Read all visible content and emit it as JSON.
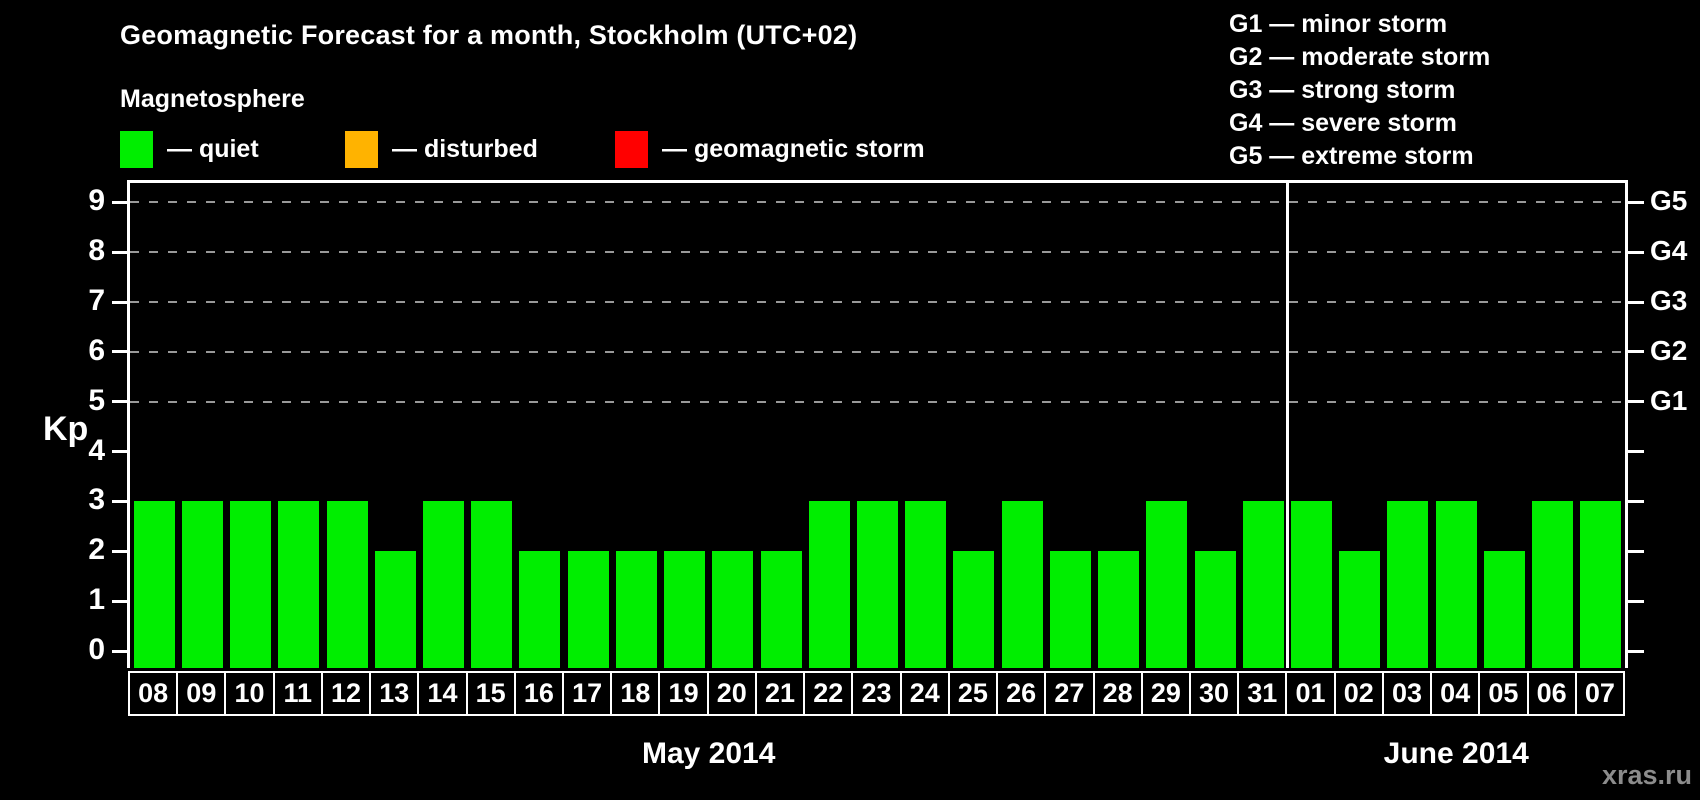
{
  "header": {
    "title": "Geomagnetic Forecast for a month, Stockholm (UTC+02)",
    "magnetosphere_label": "Magnetosphere",
    "legend": [
      {
        "label": "— quiet",
        "color": "#00ee00"
      },
      {
        "label": "— disturbed",
        "color": "#ffb300"
      },
      {
        "label": "— geomagnetic storm",
        "color": "#ff0000"
      }
    ],
    "g_scale_legend": [
      "G1 — minor storm",
      "G2 — moderate storm",
      "G3 — strong storm",
      "G4 — severe storm",
      "G5 — extreme storm"
    ]
  },
  "chart_data": {
    "type": "bar",
    "title": "Geomagnetic Forecast for a month, Stockholm (UTC+02)",
    "ylabel": "Kp",
    "ylim": [
      0,
      9.4
    ],
    "yticks": [
      0,
      1,
      2,
      3,
      4,
      5,
      6,
      7,
      8,
      9
    ],
    "gridlines_at": [
      5,
      6,
      7,
      8,
      9
    ],
    "grid": "dashed-horizontal",
    "right_axis_labels": [
      {
        "label": "G1",
        "kp": 5
      },
      {
        "label": "G2",
        "kp": 6
      },
      {
        "label": "G3",
        "kp": 7
      },
      {
        "label": "G4",
        "kp": 8
      },
      {
        "label": "G5",
        "kp": 9
      }
    ],
    "bar_color": "#00ee00",
    "categories": [
      "08",
      "09",
      "10",
      "11",
      "12",
      "13",
      "14",
      "15",
      "16",
      "17",
      "18",
      "19",
      "20",
      "21",
      "22",
      "23",
      "24",
      "25",
      "26",
      "27",
      "28",
      "29",
      "30",
      "31",
      "01",
      "02",
      "03",
      "04",
      "05",
      "06",
      "07"
    ],
    "values": [
      3,
      3,
      3,
      3,
      3,
      2,
      3,
      3,
      2,
      2,
      2,
      2,
      2,
      2,
      3,
      3,
      3,
      2,
      3,
      2,
      2,
      3,
      2,
      3,
      3,
      2,
      3,
      3,
      2,
      3,
      3
    ],
    "months": [
      {
        "label": "May 2014",
        "days": 24
      },
      {
        "label": "June 2014",
        "days": 7
      }
    ]
  },
  "watermark": "xras.ru"
}
